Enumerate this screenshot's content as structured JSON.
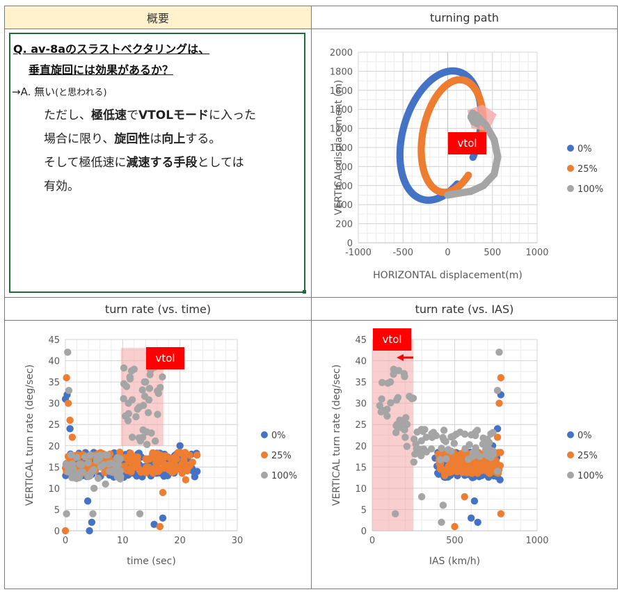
{
  "summary": {
    "header": "概要",
    "question_line1": "Q. av-8aのスラストベクタリングは、",
    "question_line2": "垂直旋回には効果があるか？",
    "answer_prefix": "→A. 無い",
    "answer_note": "(と思われる)",
    "lines": [
      [
        {
          "t": "ただし、",
          "b": false
        },
        {
          "t": "極低速",
          "b": true
        },
        {
          "t": "で",
          "b": false
        },
        {
          "t": "VTOLモード",
          "b": true
        },
        {
          "t": "に入った",
          "b": false
        }
      ],
      [
        {
          "t": "場合に限り、",
          "b": false
        },
        {
          "t": "旋回性",
          "b": true
        },
        {
          "t": "は",
          "b": false
        },
        {
          "t": "向上",
          "b": true
        },
        {
          "t": "する。",
          "b": false
        }
      ],
      [
        {
          "t": "そして極低速に",
          "b": false
        },
        {
          "t": "減速する手段",
          "b": true
        },
        {
          "t": "としては",
          "b": false
        }
      ],
      [
        {
          "t": "有効。",
          "b": false
        }
      ]
    ]
  },
  "panels": {
    "turning_path": "turning path",
    "turn_rate_time": "turn rate (vs. time)",
    "turn_rate_ias": "turn rate (vs. IAS)"
  },
  "colors": {
    "s0": "#4472c4",
    "s25": "#ed7d31",
    "s100": "#a5a5a5",
    "highlight": "#f4a6a6",
    "vtol_box": "#ff0000",
    "arrow": "#ff0000"
  },
  "chart_data": [
    {
      "id": "turning_path",
      "type": "scatter",
      "title": "",
      "xlabel": "HORIZONTAL displacement(m)",
      "ylabel": "VERTICAL displacement (m)",
      "xlim": [
        -1000,
        1000
      ],
      "ylim": [
        0,
        2000
      ],
      "xticks": [
        -1000,
        -500,
        0,
        500,
        1000
      ],
      "yticks": [
        0,
        200,
        400,
        600,
        800,
        1000,
        1200,
        1400,
        1600,
        1800,
        2000
      ],
      "grid": true,
      "legend": "right",
      "annotation": "vtol",
      "series": [
        {
          "name": "0%",
          "loop": {
            "cx": -80,
            "cy": 1125,
            "rx": 420,
            "ry": 700,
            "rot": -18,
            "start": 500,
            "end_x": 330,
            "end_y": 1280
          }
        },
        {
          "name": "25%",
          "loop": {
            "cx": 50,
            "cy": 1120,
            "rx": 330,
            "ry": 600,
            "rot": -12,
            "start": 500,
            "end_x": 300,
            "end_y": 1320
          }
        },
        {
          "name": "100%",
          "path": [
            [
              0,
              500
            ],
            [
              120,
              520
            ],
            [
              260,
              540
            ],
            [
              400,
              600
            ],
            [
              520,
              720
            ],
            [
              560,
              900
            ],
            [
              520,
              1080
            ],
            [
              430,
              1230
            ],
            [
              340,
              1320
            ],
            [
              280,
              1360
            ],
            [
              260,
              1320
            ],
            [
              290,
              1270
            ],
            [
              330,
              1250
            ]
          ]
        }
      ]
    },
    {
      "id": "turn_rate_time",
      "type": "scatter",
      "title": "",
      "xlabel": "time (sec)",
      "ylabel": "VERTICAL turn rate (deg/sec)",
      "xlim": [
        0,
        30
      ],
      "ylim": [
        0,
        45
      ],
      "xticks": [
        0,
        10,
        20,
        30
      ],
      "yticks": [
        0,
        5,
        10,
        15,
        20,
        25,
        30,
        35,
        40,
        45
      ],
      "grid": true,
      "legend": "right",
      "annotation": "vtol",
      "highlight": {
        "x0": 9.7,
        "x1": 17.1,
        "y0": 20,
        "y1": 43
      },
      "series": [
        {
          "name": "0%",
          "x_range": [
            0,
            23
          ],
          "base": 15.5,
          "spread": 3,
          "outliers": [
            [
              0,
              31
            ],
            [
              0.3,
              32
            ],
            [
              0.8,
              24
            ],
            [
              4.2,
              0
            ],
            [
              4.6,
              2
            ],
            [
              3.9,
              7
            ],
            [
              15.5,
              1.5
            ],
            [
              17,
              3
            ],
            [
              20,
              20
            ],
            [
              22,
              18
            ]
          ]
        },
        {
          "name": "25%",
          "x_range": [
            0,
            23
          ],
          "base": 16,
          "spread": 2.5,
          "outliers": [
            [
              0,
              0
            ],
            [
              0.2,
              36
            ],
            [
              0.5,
              30
            ],
            [
              0.8,
              26
            ],
            [
              1.2,
              22
            ],
            [
              16.5,
              1
            ],
            [
              17,
              9
            ],
            [
              21,
              12
            ]
          ]
        },
        {
          "name": "100%",
          "x_range": [
            0,
            17
          ],
          "base": 15,
          "spread": 3,
          "outliers": [
            [
              0.4,
              42
            ],
            [
              0.6,
              33
            ],
            [
              0.2,
              4
            ],
            [
              4.8,
              4
            ],
            [
              5,
              10
            ],
            [
              7,
              11
            ],
            [
              13,
              4
            ],
            [
              13.5,
              22
            ],
            [
              14,
              35
            ],
            [
              12,
              38
            ],
            [
              11,
              30
            ],
            [
              15,
              23
            ]
          ]
        }
      ]
    },
    {
      "id": "turn_rate_ias",
      "type": "scatter",
      "title": "",
      "xlabel": "IAS (km/h)",
      "ylabel": "VERTICAL turn rate (deg/sec)",
      "xlim": [
        0,
        1000
      ],
      "ylim": [
        0,
        45
      ],
      "xticks": [
        0,
        500,
        1000
      ],
      "yticks": [
        0,
        5,
        10,
        15,
        20,
        25,
        30,
        35,
        40,
        45
      ],
      "grid": true,
      "legend": "right",
      "annotation": "vtol",
      "highlight": {
        "x0": 0,
        "x1": 250,
        "y0": 0,
        "y1": 45
      },
      "series": [
        {
          "name": "0%",
          "x_range": [
            380,
            760
          ],
          "base": 15.5,
          "spread": 3,
          "outliers": [
            [
              620,
              7
            ],
            [
              640,
              2
            ],
            [
              600,
              3
            ],
            [
              780,
              32
            ],
            [
              775,
              12
            ],
            [
              760,
              24
            ],
            [
              730,
              20
            ],
            [
              560,
              15
            ]
          ]
        },
        {
          "name": "25%",
          "x_range": [
            400,
            780
          ],
          "base": 16,
          "spread": 2.5,
          "outliers": [
            [
              500,
              1
            ],
            [
              560,
              8
            ],
            [
              780,
              36
            ],
            [
              770,
              30
            ],
            [
              760,
              22
            ],
            [
              780,
              4
            ],
            [
              440,
              13
            ]
          ]
        },
        {
          "name": "100%",
          "x_range": [
            40,
            740
          ],
          "base": 20,
          "spread": 4,
          "outliers": [
            [
              770,
              42
            ],
            [
              760,
              33
            ],
            [
              140,
              4
            ],
            [
              430,
              6
            ],
            [
              420,
              2
            ],
            [
              300,
              8
            ],
            [
              130,
              38
            ],
            [
              110,
              35
            ],
            [
              90,
              27
            ],
            [
              150,
              25
            ],
            [
              200,
              22
            ],
            [
              760,
              14
            ]
          ]
        }
      ]
    }
  ],
  "legend_labels": [
    "0%",
    "25%",
    "100%"
  ],
  "vtol_label": "vtol"
}
